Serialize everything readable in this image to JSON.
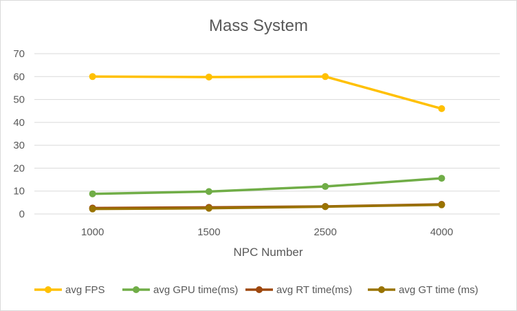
{
  "chart_data": {
    "type": "line",
    "title": "Mass System",
    "xlabel": "NPC Number",
    "ylabel": "",
    "categories": [
      "1000",
      "1500",
      "2500",
      "4000"
    ],
    "ylim": [
      0,
      70
    ],
    "yticks": [
      0,
      10,
      20,
      30,
      40,
      50,
      60,
      70
    ],
    "grid": true,
    "legend_position": "bottom",
    "series": [
      {
        "name": "avg FPS",
        "values": [
          60,
          59.8,
          60,
          46
        ],
        "color": "#ffc000"
      },
      {
        "name": "avg GPU time(ms)",
        "values": [
          8.8,
          9.8,
          12,
          15.6
        ],
        "color": "#70ad47"
      },
      {
        "name": "avg RT time(ms)",
        "values": [
          2.6,
          2.9,
          3.3,
          4.2
        ],
        "color": "#9e480e"
      },
      {
        "name": "avg GT time (ms)",
        "values": [
          2.2,
          2.5,
          3.2,
          4
        ],
        "color": "#997300"
      }
    ]
  }
}
